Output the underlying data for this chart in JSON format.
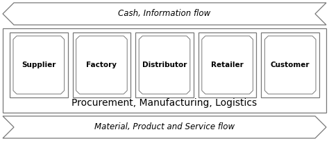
{
  "top_arrow_text": "Cash, Information flow",
  "bottom_arrow_text": "Material, Product and Service flow",
  "middle_label": "Procurement, Manufacturing, Logistics",
  "boxes": [
    "Supplier",
    "Factory",
    "Distributor",
    "Retailer",
    "Customer"
  ],
  "bg_color": "#ffffff",
  "border_color": "#777777",
  "box_color": "#ffffff",
  "text_color": "#000000",
  "arrow_fill": "#ffffff",
  "fig_width": 4.74,
  "fig_height": 2.04,
  "dpi": 100
}
